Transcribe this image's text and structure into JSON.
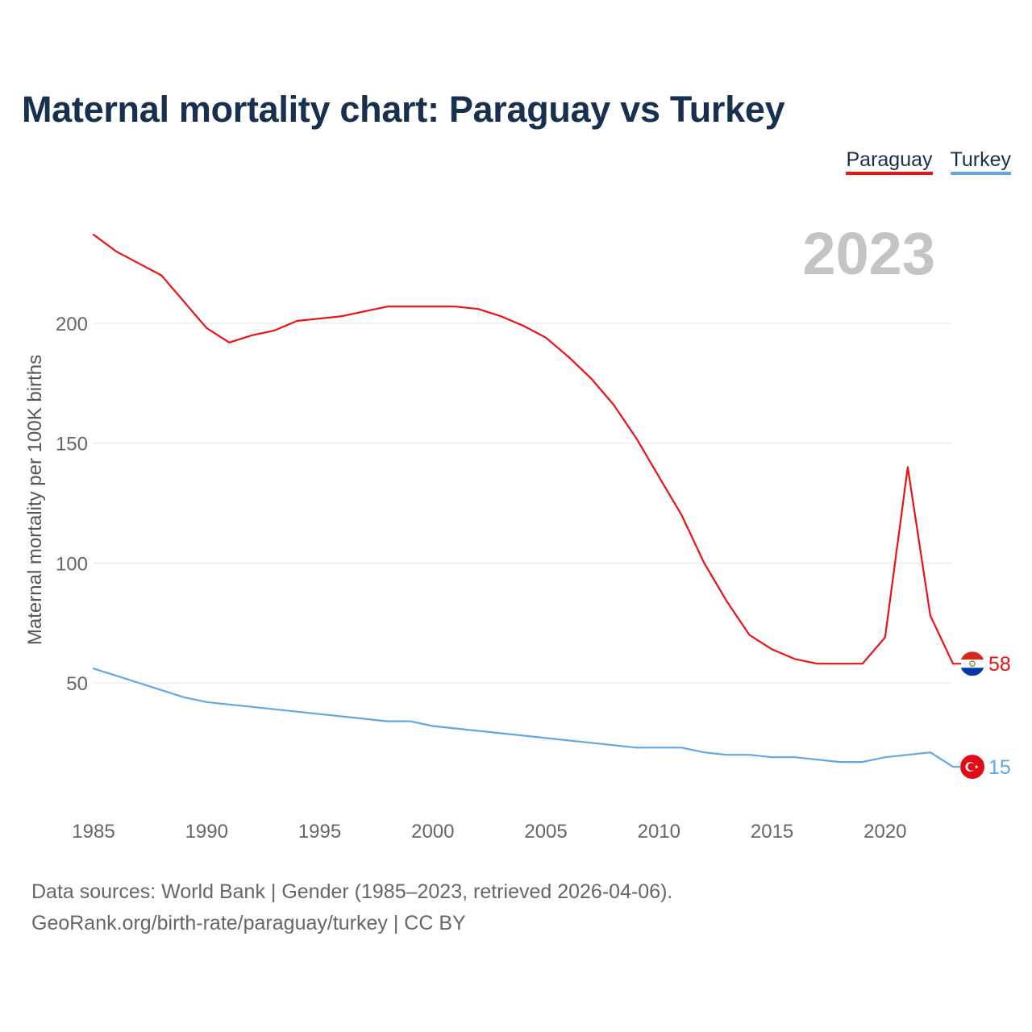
{
  "title": "Maternal mortality chart: Paraguay vs Turkey",
  "legend": [
    {
      "label": "Paraguay",
      "color": "#ee1111"
    },
    {
      "label": "Turkey",
      "color": "#5ea8e8"
    }
  ],
  "year_watermark": "2023",
  "footer": {
    "line1": "Data sources: World Bank | Gender (1985–2023, retrieved 2026-04-06).",
    "line2": "GeoRank.org/birth-rate/paraguay/turkey | CC BY"
  },
  "end_labels": {
    "paraguay": "58",
    "turkey": "15"
  },
  "chart_data": {
    "type": "line",
    "title": "Maternal mortality chart: Paraguay vs Turkey",
    "xlabel": "",
    "ylabel": "Maternal mortality per 100K births",
    "x": [
      1985,
      1986,
      1987,
      1988,
      1989,
      1990,
      1991,
      1992,
      1993,
      1994,
      1995,
      1996,
      1997,
      1998,
      1999,
      2000,
      2001,
      2002,
      2003,
      2004,
      2005,
      2006,
      2007,
      2008,
      2009,
      2010,
      2011,
      2012,
      2013,
      2014,
      2015,
      2016,
      2017,
      2018,
      2019,
      2020,
      2021,
      2022,
      2023
    ],
    "xticks": [
      1985,
      1990,
      1995,
      2000,
      2005,
      2010,
      2015,
      2020
    ],
    "xlim": [
      1985,
      2023
    ],
    "yticks": [
      50,
      100,
      150,
      200
    ],
    "ylim": [
      10,
      250
    ],
    "grid": true,
    "series": [
      {
        "name": "Paraguay",
        "color": "#ee1111",
        "values": [
          237,
          230,
          225,
          220,
          209,
          198,
          192,
          195,
          197,
          201,
          202,
          203,
          205,
          207,
          207,
          207,
          207,
          206,
          203,
          199,
          194,
          186,
          177,
          166,
          152,
          136,
          120,
          100,
          84,
          70,
          64,
          60,
          58,
          58,
          58,
          69,
          140,
          78,
          58
        ]
      },
      {
        "name": "Turkey",
        "color": "#5ea8e8",
        "values": [
          56,
          53,
          50,
          47,
          44,
          42,
          41,
          40,
          39,
          38,
          37,
          36,
          35,
          34,
          34,
          32,
          31,
          30,
          29,
          28,
          27,
          26,
          25,
          24,
          23,
          23,
          23,
          21,
          20,
          20,
          19,
          19,
          18,
          17,
          17,
          19,
          20,
          21,
          15
        ]
      }
    ]
  }
}
